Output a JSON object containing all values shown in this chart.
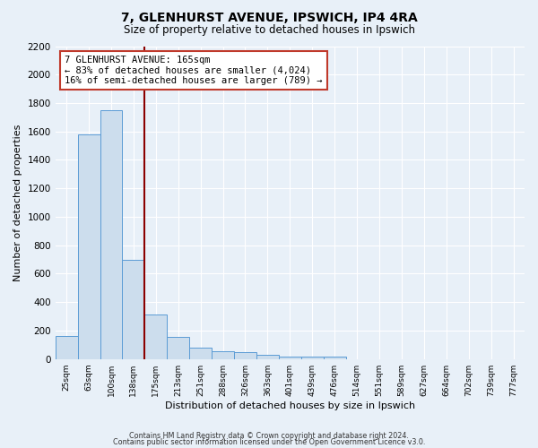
{
  "title": "7, GLENHURST AVENUE, IPSWICH, IP4 4RA",
  "subtitle": "Size of property relative to detached houses in Ipswich",
  "xlabel": "Distribution of detached houses by size in Ipswich",
  "ylabel": "Number of detached properties",
  "bin_labels": [
    "25sqm",
    "63sqm",
    "100sqm",
    "138sqm",
    "175sqm",
    "213sqm",
    "251sqm",
    "288sqm",
    "326sqm",
    "363sqm",
    "401sqm",
    "439sqm",
    "476sqm",
    "514sqm",
    "551sqm",
    "589sqm",
    "627sqm",
    "664sqm",
    "702sqm",
    "739sqm",
    "777sqm"
  ],
  "bin_values": [
    160,
    1580,
    1750,
    700,
    315,
    155,
    80,
    55,
    50,
    30,
    20,
    15,
    15,
    0,
    0,
    0,
    0,
    0,
    0,
    0,
    0
  ],
  "bar_color": "#ccdded",
  "bar_edge_color": "#5b9bd5",
  "property_line_color": "#8b0000",
  "annotation_text": "7 GLENHURST AVENUE: 165sqm\n← 83% of detached houses are smaller (4,024)\n16% of semi-detached houses are larger (789) →",
  "annotation_box_color": "#ffffff",
  "annotation_box_edge_color": "#c0392b",
  "ylim": [
    0,
    2200
  ],
  "yticks": [
    0,
    200,
    400,
    600,
    800,
    1000,
    1200,
    1400,
    1600,
    1800,
    2000,
    2200
  ],
  "bg_color": "#e8f0f8",
  "grid_color": "#ffffff",
  "footer_line1": "Contains HM Land Registry data © Crown copyright and database right 2024.",
  "footer_line2": "Contains public sector information licensed under the Open Government Licence v3.0."
}
